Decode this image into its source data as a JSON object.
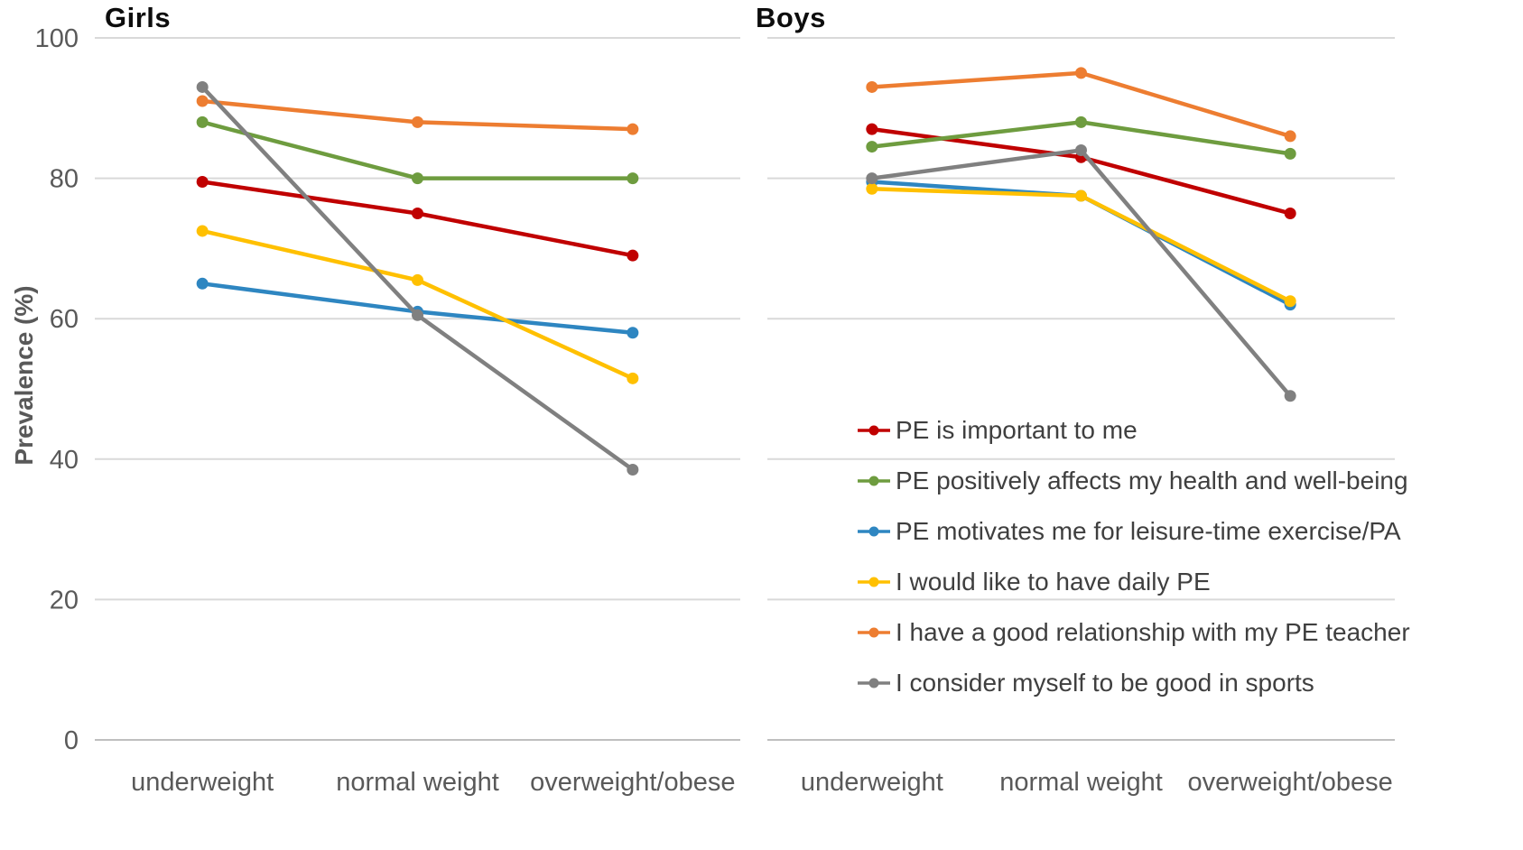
{
  "figure": {
    "ylabel": "Prevalence (%)"
  },
  "chart_data": [
    {
      "type": "line",
      "title": "Girls",
      "ylabel": "Prevalence (%)",
      "xlabel": "",
      "ylim": [
        0,
        100
      ],
      "yticks": [
        0,
        20,
        40,
        60,
        80,
        100
      ],
      "grid": "horizontal",
      "categories": [
        "underweight",
        "normal weight",
        "overweight/obese"
      ],
      "series": [
        {
          "id": "pe-important",
          "name": "PE is important to me",
          "color": "#C00000",
          "values": [
            79.5,
            75,
            69
          ]
        },
        {
          "id": "pe-health",
          "name": "PE positively affects my health and well-being",
          "color": "#6E9C3F",
          "values": [
            88,
            80,
            80
          ]
        },
        {
          "id": "pe-motivates",
          "name": "PE motivates me for leisure-time exercise/PA",
          "color": "#2E86C1",
          "values": [
            65,
            61,
            58
          ]
        },
        {
          "id": "daily-pe",
          "name": "I would like to have daily PE",
          "color": "#FFC000",
          "values": [
            72.5,
            65.5,
            51.5
          ]
        },
        {
          "id": "pe-teacher",
          "name": "I have a good relationship with my PE teacher",
          "color": "#ED7D31",
          "values": [
            91,
            88,
            87
          ]
        },
        {
          "id": "good-in-sports",
          "name": "I consider myself to be good in sports",
          "color": "#808080",
          "values": [
            93,
            60.5,
            38.5
          ]
        }
      ]
    },
    {
      "type": "line",
      "title": "Boys",
      "ylabel": "",
      "xlabel": "",
      "ylim": [
        0,
        100
      ],
      "yticks": [
        0,
        20,
        40,
        60,
        80,
        100
      ],
      "grid": "horizontal",
      "legend_position": "lower right",
      "categories": [
        "underweight",
        "normal weight",
        "overweight/obese"
      ],
      "series": [
        {
          "id": "pe-important",
          "name": "PE is important to me",
          "color": "#C00000",
          "values": [
            87,
            83,
            75
          ]
        },
        {
          "id": "pe-health",
          "name": "PE positively affects my health and well-being",
          "color": "#6E9C3F",
          "values": [
            84.5,
            88,
            83.5
          ]
        },
        {
          "id": "pe-motivates",
          "name": "PE motivates me for leisure-time exercise/PA",
          "color": "#2E86C1",
          "values": [
            79.5,
            77.5,
            62
          ]
        },
        {
          "id": "daily-pe",
          "name": "I would like to have daily PE",
          "color": "#FFC000",
          "values": [
            78.5,
            77.5,
            62.5
          ]
        },
        {
          "id": "pe-teacher",
          "name": "I have a good relationship with my PE teacher",
          "color": "#ED7D31",
          "values": [
            93,
            95,
            86
          ]
        },
        {
          "id": "good-in-sports",
          "name": "I consider myself to be good in sports",
          "color": "#808080",
          "values": [
            80,
            84,
            49
          ]
        }
      ]
    }
  ]
}
